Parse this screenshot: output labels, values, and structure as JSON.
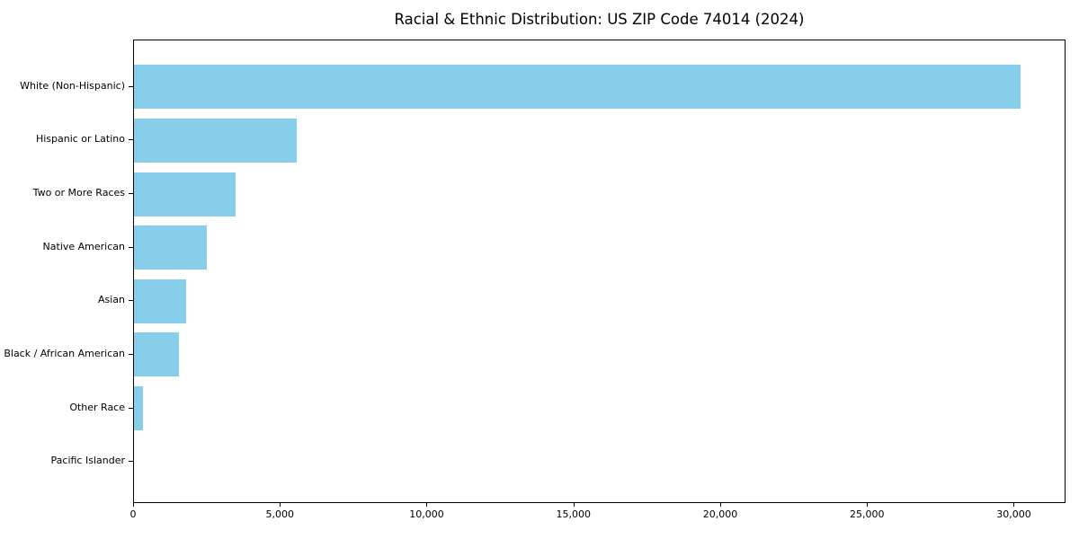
{
  "figure": {
    "background": "#ffffff",
    "frame_color": "#000000"
  },
  "chart_data": {
    "type": "bar",
    "orientation": "horizontal",
    "title": "Racial & Ethnic Distribution: US ZIP Code 74014 (2024)",
    "xlabel": "",
    "ylabel": "",
    "categories": [
      "White (Non-Hispanic)",
      "Hispanic or Latino",
      "Two or More Races",
      "Native American",
      "Asian",
      "Black / African American",
      "Other Race",
      "Pacific Islander"
    ],
    "values": [
      30200,
      5540,
      3460,
      2480,
      1780,
      1530,
      300,
      0
    ],
    "xlim": [
      0,
      31700
    ],
    "x_ticks": [
      0,
      5000,
      10000,
      15000,
      20000,
      25000,
      30000
    ],
    "x_tick_labels": [
      "0",
      "5,000",
      "10,000",
      "15,000",
      "20,000",
      "25,000",
      "30,000"
    ],
    "bar_color": "#87CEEB",
    "grid": false,
    "legend": "none"
  }
}
